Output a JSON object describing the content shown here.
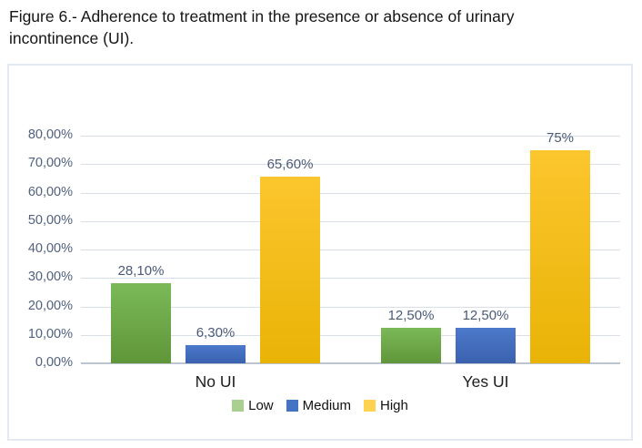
{
  "figure": {
    "title": "Figure 6.- Adherence to treatment in the presence or absence of urinary incontinence (UI)."
  },
  "chart_data": {
    "type": "bar",
    "title": "",
    "xlabel": "",
    "ylabel": "",
    "categories": [
      "No UI",
      "Yes UI"
    ],
    "series": [
      {
        "name": "Low",
        "values": [
          28.1,
          12.5
        ],
        "labels": [
          "28,10%",
          "12,50%"
        ],
        "bar_color_top": "#7bb958",
        "bar_color_bottom": "#5f9639",
        "legend_color": "#a9d08e"
      },
      {
        "name": "Medium",
        "values": [
          6.3,
          12.5
        ],
        "labels": [
          "6,30%",
          "12,50%"
        ],
        "bar_color_top": "#4c79cb",
        "bar_color_bottom": "#3a61ae",
        "legend_color": "#4472c4"
      },
      {
        "name": "High",
        "values": [
          65.6,
          75.0
        ],
        "labels": [
          "65,60%",
          "75%"
        ],
        "bar_color_top": "#fcc62e",
        "bar_color_bottom": "#e9b306",
        "legend_color": "#ffd34f"
      }
    ],
    "ylim": [
      0,
      80
    ],
    "ytick_step": 10,
    "ytick_labels": [
      "0,00%",
      "10,00%",
      "20,00%",
      "30,00%",
      "40,00%",
      "50,00%",
      "60,00%",
      "70,00%",
      "80,00%"
    ],
    "grid": true,
    "legend_position": "bottom"
  },
  "style_colors": {
    "gridline": "#d9dfe8",
    "axis_line": "#bcc4d0",
    "tick_text": "#51617f",
    "data_label_text": "#4a5a78",
    "category_text": "#1c1c1c",
    "chart_border": "#e3e9f1",
    "title_text": "#151515"
  }
}
